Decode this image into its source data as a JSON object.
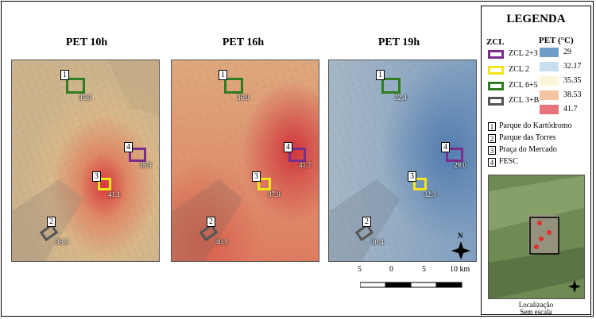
{
  "maps": [
    {
      "title": "PET 10h",
      "zones": [
        {
          "id": "1",
          "value": "35.9"
        },
        {
          "id": "4",
          "value": "35.9"
        },
        {
          "id": "3",
          "value": "41.1"
        },
        {
          "id": "2",
          "value": "36.5"
        }
      ]
    },
    {
      "title": "PET 16h",
      "zones": [
        {
          "id": "1",
          "value": "36.9"
        },
        {
          "id": "4",
          "value": "41.7"
        },
        {
          "id": "3",
          "value": "37.9"
        },
        {
          "id": "2",
          "value": "40.3"
        }
      ]
    },
    {
      "title": "PET 19h",
      "zones": [
        {
          "id": "1",
          "value": "32.4"
        },
        {
          "id": "4",
          "value": "29.0"
        },
        {
          "id": "3",
          "value": "32.3"
        },
        {
          "id": "2",
          "value": "30.4"
        }
      ]
    }
  ],
  "north_label": "N",
  "scale": {
    "labels": [
      "5",
      "0",
      "5",
      "10 km"
    ]
  },
  "legend": {
    "title": "LEGENDA",
    "zcl_heading": "ZCL",
    "pet_heading": "PET (°C)",
    "zcl_items": [
      {
        "label": "ZCL 2+3",
        "color": "#7b2d8e"
      },
      {
        "label": "ZCL 2",
        "color": "#f2e51c"
      },
      {
        "label": "ZCL 6+5",
        "color": "#2e7d1f"
      },
      {
        "label": "ZCL 3+B",
        "color": "#555555"
      }
    ],
    "pet_items": [
      {
        "label": "29",
        "color": "#6f9cc9"
      },
      {
        "label": "32.17",
        "color": "#c8dff0"
      },
      {
        "label": "35.35",
        "color": "#fbf6da"
      },
      {
        "label": "38.53",
        "color": "#f4c5a0"
      },
      {
        "label": "41.7",
        "color": "#e8737a"
      }
    ],
    "locations": [
      {
        "id": "1",
        "label": "Parque do Kartódromo"
      },
      {
        "id": "2",
        "label": "Parque das Torres"
      },
      {
        "id": "3",
        "label": "Praça do Mercado"
      },
      {
        "id": "4",
        "label": "FESC"
      }
    ],
    "inset_caption_1": "Localização",
    "inset_caption_2": "Sem escala"
  }
}
